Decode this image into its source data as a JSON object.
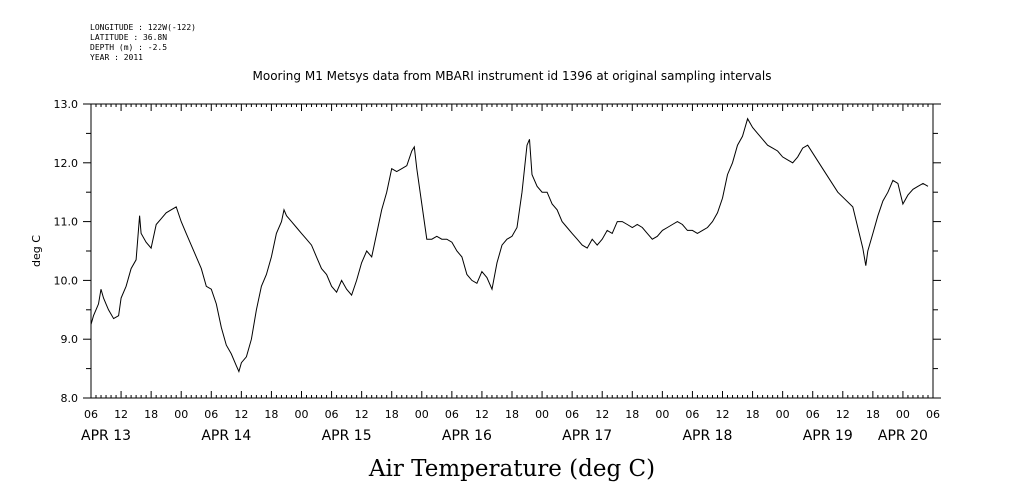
{
  "meta_lines": [
    "LONGITUDE : 122W(-122)",
    "LATITUDE : 36.8N",
    "DEPTH (m) : -2.5",
    "YEAR : 2011"
  ],
  "chart_data": {
    "type": "line",
    "title": "Mooring M1 Metsys data from MBARI instrument id 1396 at original sampling intervals",
    "subtitle": "",
    "xlabel": "Air Temperature (deg C)",
    "ylabel": "deg C",
    "ylim": [
      8.0,
      13.0
    ],
    "yticks": [
      "8.0",
      "9.0",
      "10.0",
      "11.0",
      "12.0",
      "13.0"
    ],
    "xlim_hours": [
      0,
      168
    ],
    "hour_tick_labels": [
      "06",
      "12",
      "18",
      "00",
      "06",
      "12",
      "18",
      "00",
      "06",
      "12",
      "18",
      "00",
      "06",
      "12",
      "18",
      "00",
      "06",
      "12",
      "18",
      "00",
      "06",
      "12",
      "18",
      "00",
      "06",
      "12",
      "18",
      "00",
      "06"
    ],
    "day_labels": [
      {
        "label": "APR 13",
        "hour": 3
      },
      {
        "label": "APR 14",
        "hour": 27
      },
      {
        "label": "APR 15",
        "hour": 51
      },
      {
        "label": "APR 16",
        "hour": 75
      },
      {
        "label": "APR 17",
        "hour": 99
      },
      {
        "label": "APR 18",
        "hour": 123
      },
      {
        "label": "APR 19",
        "hour": 147
      },
      {
        "label": "APR 20",
        "hour": 162
      }
    ],
    "series": [
      {
        "points": [
          [
            0.0,
            9.25
          ],
          [
            0.5,
            9.4
          ],
          [
            1.0,
            9.5
          ],
          [
            1.5,
            9.6
          ],
          [
            2.0,
            9.85
          ],
          [
            2.5,
            9.7
          ],
          [
            3.0,
            9.6
          ],
          [
            3.5,
            9.5
          ],
          [
            4.5,
            9.35
          ],
          [
            5.5,
            9.4
          ],
          [
            6.0,
            9.7
          ],
          [
            7.0,
            9.9
          ],
          [
            8.0,
            10.2
          ],
          [
            9.0,
            10.35
          ],
          [
            9.7,
            11.1
          ],
          [
            10.0,
            10.8
          ],
          [
            11.0,
            10.65
          ],
          [
            12.0,
            10.55
          ],
          [
            13.0,
            10.95
          ],
          [
            14.0,
            11.05
          ],
          [
            15.0,
            11.15
          ],
          [
            16.0,
            11.2
          ],
          [
            17.0,
            11.25
          ],
          [
            18.0,
            11.0
          ],
          [
            19.0,
            10.8
          ],
          [
            20.0,
            10.6
          ],
          [
            21.0,
            10.4
          ],
          [
            22.0,
            10.2
          ],
          [
            23.0,
            9.9
          ],
          [
            24.0,
            9.85
          ],
          [
            25.0,
            9.6
          ],
          [
            26.0,
            9.2
          ],
          [
            27.0,
            8.9
          ],
          [
            28.0,
            8.75
          ],
          [
            29.0,
            8.55
          ],
          [
            29.5,
            8.45
          ],
          [
            30.0,
            8.6
          ],
          [
            31.0,
            8.7
          ],
          [
            32.0,
            9.0
          ],
          [
            33.0,
            9.5
          ],
          [
            34.0,
            9.9
          ],
          [
            35.0,
            10.1
          ],
          [
            36.0,
            10.4
          ],
          [
            37.0,
            10.8
          ],
          [
            38.0,
            11.0
          ],
          [
            38.5,
            11.2
          ],
          [
            39.0,
            11.1
          ],
          [
            40.0,
            11.0
          ],
          [
            41.0,
            10.9
          ],
          [
            42.0,
            10.8
          ],
          [
            43.0,
            10.7
          ],
          [
            44.0,
            10.6
          ],
          [
            45.0,
            10.4
          ],
          [
            46.0,
            10.2
          ],
          [
            47.0,
            10.1
          ],
          [
            48.0,
            9.9
          ],
          [
            49.0,
            9.8
          ],
          [
            50.0,
            10.0
          ],
          [
            51.0,
            9.85
          ],
          [
            52.0,
            9.75
          ],
          [
            53.0,
            10.0
          ],
          [
            54.0,
            10.3
          ],
          [
            55.0,
            10.5
          ],
          [
            56.0,
            10.4
          ],
          [
            57.0,
            10.8
          ],
          [
            58.0,
            11.2
          ],
          [
            59.0,
            11.5
          ],
          [
            60.0,
            11.9
          ],
          [
            61.0,
            11.85
          ],
          [
            62.0,
            11.9
          ],
          [
            63.0,
            11.95
          ],
          [
            64.0,
            12.2
          ],
          [
            64.5,
            12.27
          ],
          [
            65.0,
            11.9
          ],
          [
            66.0,
            11.3
          ],
          [
            67.0,
            10.7
          ],
          [
            68.0,
            10.7
          ],
          [
            69.0,
            10.75
          ],
          [
            70.0,
            10.7
          ],
          [
            71.0,
            10.7
          ],
          [
            72.0,
            10.65
          ],
          [
            73.0,
            10.5
          ],
          [
            74.0,
            10.4
          ],
          [
            75.0,
            10.1
          ],
          [
            76.0,
            10.0
          ],
          [
            77.0,
            9.95
          ],
          [
            78.0,
            10.15
          ],
          [
            79.0,
            10.05
          ],
          [
            80.0,
            9.85
          ],
          [
            81.0,
            10.3
          ],
          [
            82.0,
            10.6
          ],
          [
            83.0,
            10.7
          ],
          [
            84.0,
            10.75
          ],
          [
            85.0,
            10.9
          ],
          [
            86.0,
            11.5
          ],
          [
            87.0,
            12.3
          ],
          [
            87.5,
            12.4
          ],
          [
            88.0,
            11.8
          ],
          [
            89.0,
            11.6
          ],
          [
            90.0,
            11.5
          ],
          [
            91.0,
            11.5
          ],
          [
            92.0,
            11.3
          ],
          [
            93.0,
            11.2
          ],
          [
            94.0,
            11.0
          ],
          [
            95.0,
            10.9
          ],
          [
            96.0,
            10.8
          ],
          [
            97.0,
            10.7
          ],
          [
            98.0,
            10.6
          ],
          [
            99.0,
            10.55
          ],
          [
            100.0,
            10.7
          ],
          [
            101.0,
            10.6
          ],
          [
            102.0,
            10.7
          ],
          [
            103.0,
            10.85
          ],
          [
            104.0,
            10.8
          ],
          [
            105.0,
            11.0
          ],
          [
            106.0,
            11.0
          ],
          [
            107.0,
            10.95
          ],
          [
            108.0,
            10.9
          ],
          [
            109.0,
            10.95
          ],
          [
            110.0,
            10.9
          ],
          [
            111.0,
            10.8
          ],
          [
            112.0,
            10.7
          ],
          [
            113.0,
            10.75
          ],
          [
            114.0,
            10.85
          ],
          [
            115.0,
            10.9
          ],
          [
            116.0,
            10.95
          ],
          [
            117.0,
            11.0
          ],
          [
            118.0,
            10.95
          ],
          [
            119.0,
            10.85
          ],
          [
            120.0,
            10.85
          ],
          [
            121.0,
            10.8
          ],
          [
            122.0,
            10.85
          ],
          [
            123.0,
            10.9
          ],
          [
            124.0,
            11.0
          ],
          [
            125.0,
            11.15
          ],
          [
            126.0,
            11.4
          ],
          [
            127.0,
            11.8
          ],
          [
            128.0,
            12.0
          ],
          [
            129.0,
            12.3
          ],
          [
            130.0,
            12.45
          ],
          [
            131.0,
            12.75
          ],
          [
            132.0,
            12.6
          ],
          [
            133.0,
            12.5
          ],
          [
            134.0,
            12.4
          ],
          [
            135.0,
            12.3
          ],
          [
            136.0,
            12.25
          ],
          [
            137.0,
            12.2
          ],
          [
            138.0,
            12.1
          ],
          [
            139.0,
            12.05
          ],
          [
            140.0,
            12.0
          ],
          [
            141.0,
            12.1
          ],
          [
            142.0,
            12.25
          ],
          [
            143.0,
            12.3
          ],
          [
            146.0,
            11.9
          ],
          [
            149.0,
            11.5
          ],
          [
            152.0,
            11.25
          ],
          [
            153.0,
            10.9
          ],
          [
            154.0,
            10.55
          ],
          [
            154.6,
            10.25
          ],
          [
            155.0,
            10.5
          ],
          [
            156.0,
            10.8
          ],
          [
            157.0,
            11.1
          ],
          [
            158.0,
            11.35
          ],
          [
            159.0,
            11.5
          ],
          [
            160.0,
            11.7
          ],
          [
            161.0,
            11.65
          ],
          [
            162.0,
            11.3
          ],
          [
            163.0,
            11.45
          ],
          [
            164.0,
            11.55
          ],
          [
            165.0,
            11.6
          ],
          [
            166.0,
            11.65
          ],
          [
            167.0,
            11.6
          ]
        ]
      }
    ]
  }
}
